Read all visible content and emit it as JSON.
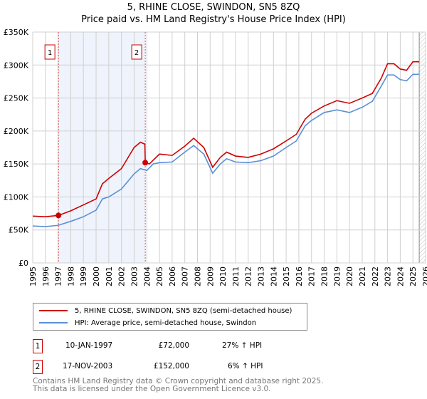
{
  "title": "5, RHINE CLOSE, SWINDON, SN5 8ZQ",
  "subtitle": "Price paid vs. HM Land Registry's House Price Index (HPI)",
  "chart_data": {
    "type": "line",
    "ylim": [
      0,
      350000
    ],
    "xlim": [
      1995,
      2026
    ],
    "yticks": [
      {
        "v": 0,
        "label": "£0"
      },
      {
        "v": 50000,
        "label": "£50K"
      },
      {
        "v": 100000,
        "label": "£100K"
      },
      {
        "v": 150000,
        "label": "£150K"
      },
      {
        "v": 200000,
        "label": "£200K"
      },
      {
        "v": 250000,
        "label": "£250K"
      },
      {
        "v": 300000,
        "label": "£300K"
      },
      {
        "v": 350000,
        "label": "£350K"
      }
    ],
    "xticks": [
      "1995",
      "1996",
      "1997",
      "1998",
      "1999",
      "2000",
      "2001",
      "2002",
      "2003",
      "2004",
      "2005",
      "2006",
      "2007",
      "2008",
      "2009",
      "2010",
      "2011",
      "2012",
      "2013",
      "2014",
      "2015",
      "2016",
      "2017",
      "2018",
      "2019",
      "2020",
      "2021",
      "2022",
      "2023",
      "2024",
      "2025",
      "2026"
    ],
    "series": [
      {
        "name": "5, RHINE CLOSE, SWINDON, SN5 8ZQ (semi-detached house)",
        "color": "#cc0000",
        "x": [
          1995,
          1996,
          1997.03,
          1998,
          1999,
          2000,
          2000.5,
          2001,
          2002,
          2003,
          2003.5,
          2003.85,
          2003.88,
          2004.2,
          2005,
          2006,
          2007,
          2007.7,
          2008.5,
          2009.2,
          2009.8,
          2010.3,
          2011,
          2012,
          2013,
          2014,
          2015,
          2015.8,
          2016.5,
          2017,
          2018,
          2019,
          2020,
          2021,
          2021.8,
          2022.5,
          2023,
          2023.5,
          2024,
          2024.5,
          2025,
          2025.5
        ],
        "y": [
          71000,
          70000,
          72000,
          79000,
          88000,
          97000,
          120000,
          128000,
          143000,
          175000,
          183000,
          180000,
          152000,
          150000,
          165000,
          163000,
          177000,
          189000,
          175000,
          145000,
          160000,
          168000,
          162000,
          160000,
          165000,
          173000,
          185000,
          195000,
          218000,
          227000,
          238000,
          246000,
          242000,
          250000,
          257000,
          280000,
          302000,
          302000,
          294000,
          292000,
          305000,
          305000
        ]
      },
      {
        "name": "HPI: Average price, semi-detached house, Swindon",
        "color": "#5b8fd6",
        "x": [
          1995,
          1996,
          1997,
          1998,
          1999,
          2000,
          2000.5,
          2001,
          2002,
          2003,
          2003.5,
          2004,
          2004.5,
          2005,
          2006,
          2007,
          2007.7,
          2008.5,
          2009.2,
          2009.8,
          2010.3,
          2011,
          2012,
          2013,
          2014,
          2015,
          2015.8,
          2016.5,
          2017,
          2018,
          2019,
          2020,
          2021,
          2021.8,
          2022.5,
          2023,
          2023.5,
          2024,
          2024.5,
          2025,
          2025.5
        ],
        "y": [
          56000,
          55000,
          57000,
          63000,
          70000,
          80000,
          97000,
          100000,
          112000,
          135000,
          143000,
          140000,
          150000,
          152000,
          153000,
          168000,
          178000,
          165000,
          136000,
          150000,
          158000,
          153000,
          152000,
          155000,
          162000,
          175000,
          185000,
          208000,
          216000,
          228000,
          232000,
          228000,
          236000,
          245000,
          268000,
          285000,
          285000,
          278000,
          276000,
          286000,
          286000
        ]
      }
    ],
    "sales": [
      {
        "label": "1",
        "x": 1997.03,
        "y": 72000
      },
      {
        "label": "2",
        "x": 2003.88,
        "y": 152000
      }
    ],
    "shaded_range": [
      1997.03,
      2003.88
    ],
    "forecast_from": 2025.5
  },
  "legend": {
    "series1": "5, RHINE CLOSE, SWINDON, SN5 8ZQ (semi-detached house)",
    "series2": "HPI: Average price, semi-detached house, Swindon"
  },
  "transactions": [
    {
      "num": "1",
      "date": "10-JAN-1997",
      "price": "£72,000",
      "hpi": "27% ↑ HPI"
    },
    {
      "num": "2",
      "date": "17-NOV-2003",
      "price": "£152,000",
      "hpi": "6% ↑ HPI"
    }
  ],
  "footer": {
    "line1": "Contains HM Land Registry data © Crown copyright and database right 2025.",
    "line2": "This data is licensed under the Open Government Licence v3.0."
  }
}
